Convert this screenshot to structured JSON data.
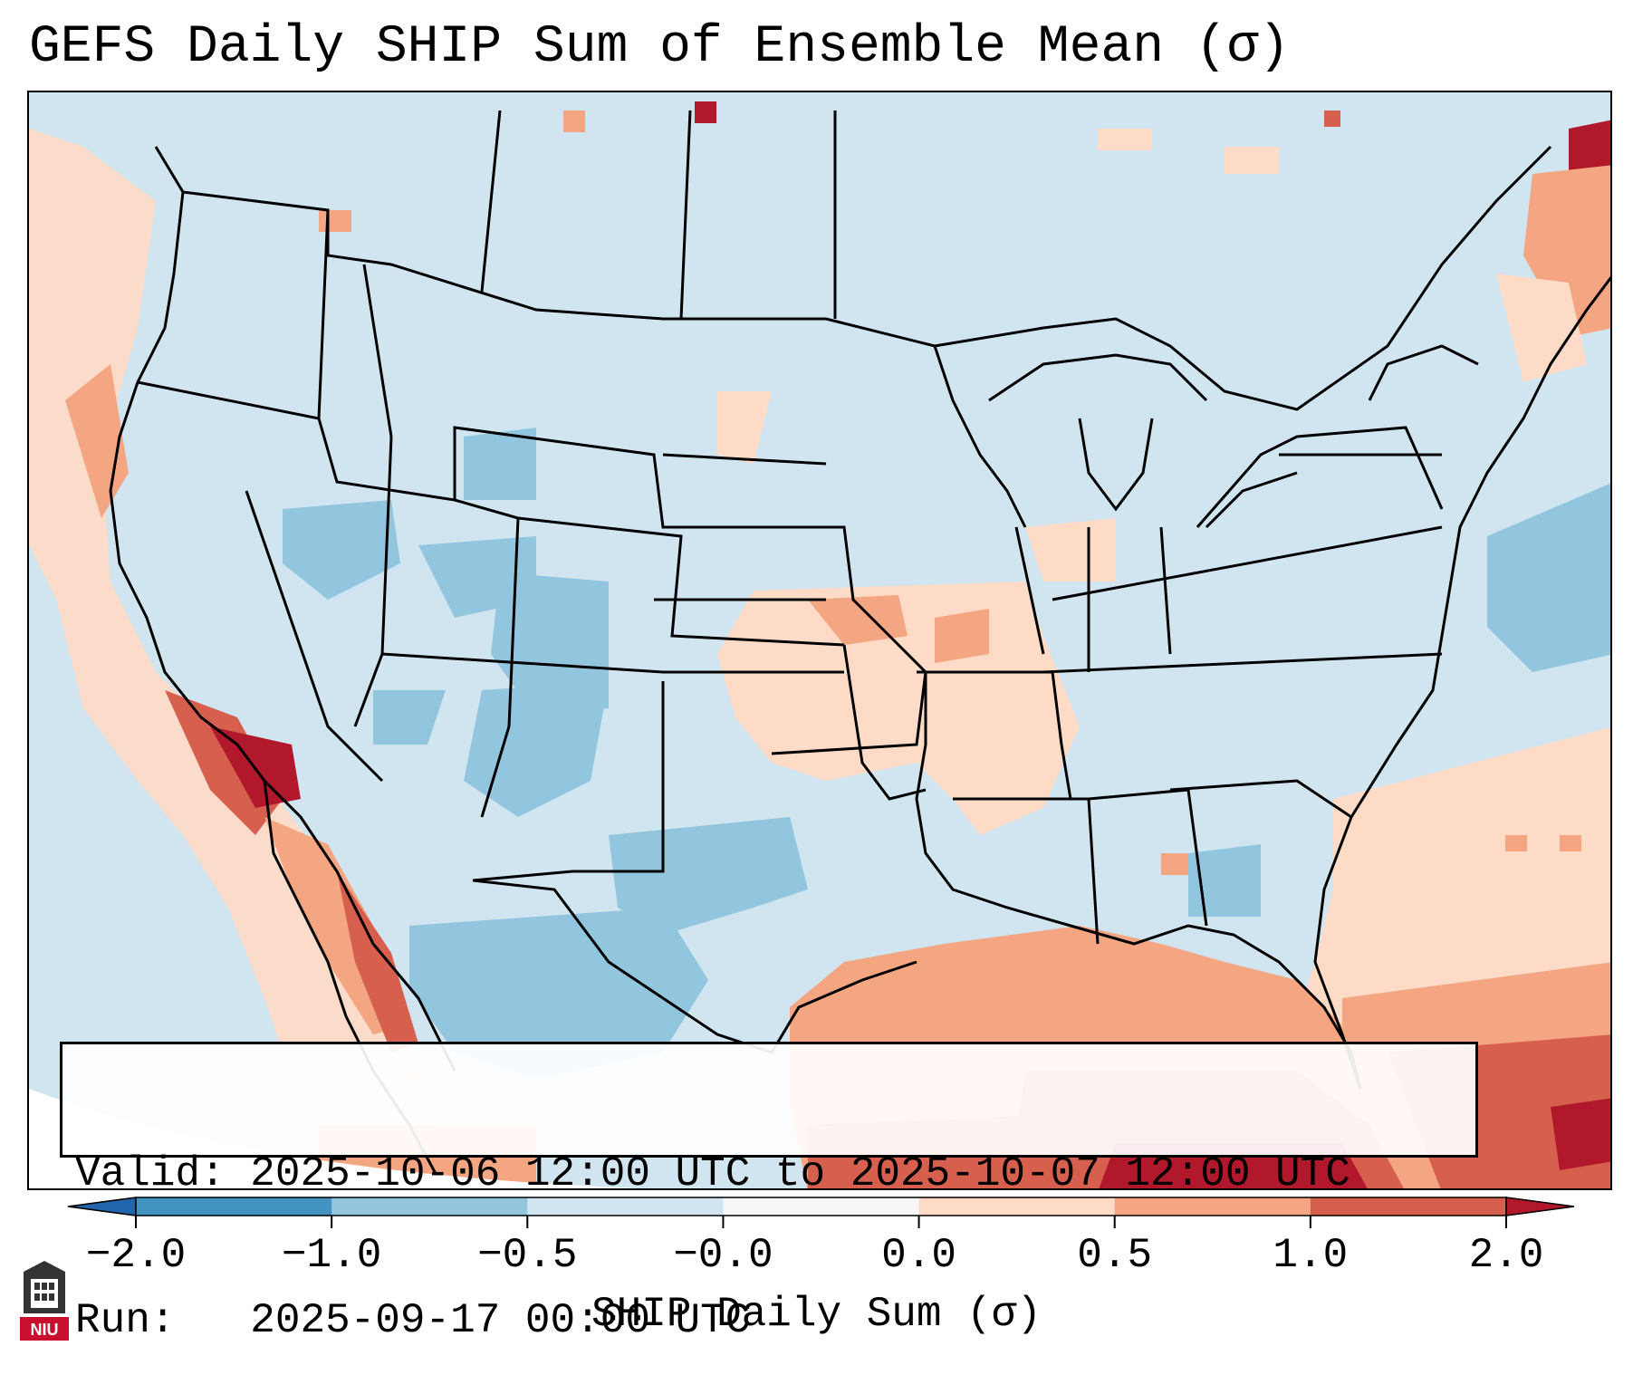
{
  "title": "GEFS Daily SHIP Sum of Ensemble Mean (σ)",
  "info": {
    "valid_label": "Valid:",
    "valid_value": "2025-10-06 12:00 UTC to 2025-10-07 12:00 UTC",
    "run_label": "Run:",
    "run_value": "2025-09-17 00:00 UTC"
  },
  "colorbar": {
    "label": "SHIP Daily Sum (σ)",
    "ticks": [
      "−2.0",
      "−1.0",
      "−0.5",
      "−0.0",
      "0.0",
      "0.5",
      "1.0",
      "2.0"
    ],
    "bins": [
      {
        "name": "lt-neg2",
        "color": "#2166ac"
      },
      {
        "name": "neg2-neg1",
        "color": "#4393c3"
      },
      {
        "name": "neg1-neg05",
        "color": "#92c5de"
      },
      {
        "name": "neg05-0",
        "color": "#d1e5f0"
      },
      {
        "name": "zero",
        "color": "#f7f7f7"
      },
      {
        "name": "0-05",
        "color": "#fddbc7"
      },
      {
        "name": "05-1",
        "color": "#f4a582"
      },
      {
        "name": "1-2",
        "color": "#d6604d"
      },
      {
        "name": "gt2",
        "color": "#b2182b"
      }
    ]
  },
  "logo": {
    "text": "NIU",
    "color": "#c8102e"
  }
}
